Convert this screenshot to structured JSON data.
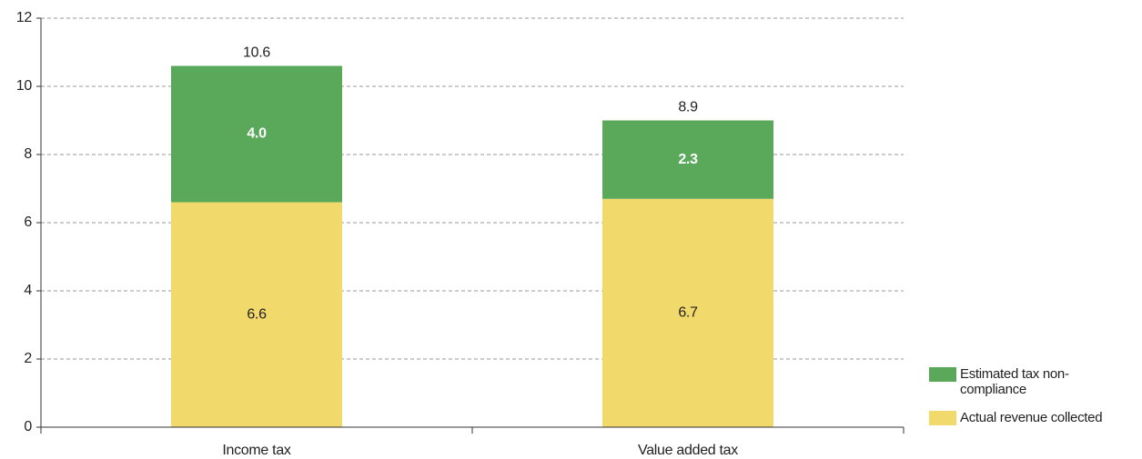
{
  "chart_data": {
    "type": "stacked_bar",
    "categories": [
      "Income tax",
      "Value added tax"
    ],
    "series": [
      {
        "name": "Actual revenue collected",
        "color": "#f2d96b",
        "values": [
          6.6,
          6.7
        ]
      },
      {
        "name": "Estimated tax non-compliance",
        "color": "#5aa85a",
        "values": [
          4,
          2.3
        ],
        "value_labels": [
          "4.0",
          "2.3"
        ]
      }
    ],
    "totals": [
      10.6,
      8.9
    ],
    "ylim": [
      0,
      12
    ],
    "yticks": [
      0,
      2,
      4,
      6,
      8,
      10,
      12
    ],
    "grid": true
  }
}
